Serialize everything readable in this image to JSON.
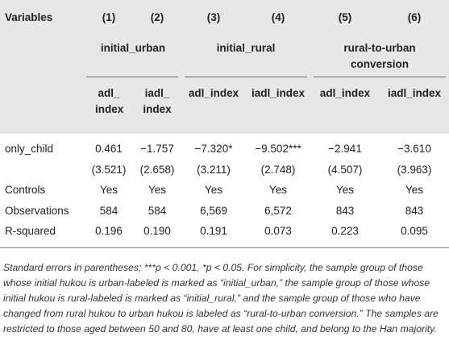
{
  "table": {
    "header": {
      "variables_label": "Variables",
      "col_numbers": [
        "(1)",
        "(2)",
        "(3)",
        "(4)",
        "(5)",
        "(6)"
      ],
      "groups": [
        "initial_urban",
        "initial_rural",
        "rural-to-urban conversion"
      ],
      "subheaders": [
        "adl_ index",
        "iadl_ index",
        "adl_index",
        "iadl_index",
        "adl_index",
        "iadl_index"
      ]
    },
    "rows": [
      {
        "label": "only_child",
        "values": [
          "0.461",
          "−1.757",
          "−7.320*",
          "−9.502***",
          "−2.941",
          "−3.610"
        ]
      },
      {
        "label": "",
        "values": [
          "(3.521)",
          "(2.658)",
          "(3.211)",
          "(2.748)",
          "(4.507)",
          "(3.963)"
        ]
      },
      {
        "label": "Controls",
        "values": [
          "Yes",
          "Yes",
          "Yes",
          "Yes",
          "Yes",
          "Yes"
        ]
      },
      {
        "label": "Observations",
        "values": [
          "584",
          "584",
          "6,569",
          "6,572",
          "843",
          "843"
        ]
      },
      {
        "label": "R-squared",
        "values": [
          "0.196",
          "0.190",
          "0.191",
          "0.073",
          "0.223",
          "0.095"
        ]
      }
    ]
  },
  "notes": "Standard errors in parentheses; ***p < 0.001, *p < 0.05. For simplicity, the sample group of those whose initial hukou is urban-labeled is marked as “initial_urban,” the sample group of those whose initial hukou is rural-labeled is marked as “initial_rural,” and the sample group of those who have changed from rural hukou to urban hukou is labeled as “rural-to-urban conversion.” The samples are restricted to those aged between 50 and 80, have at least one child, and belong to the Han majority."
}
